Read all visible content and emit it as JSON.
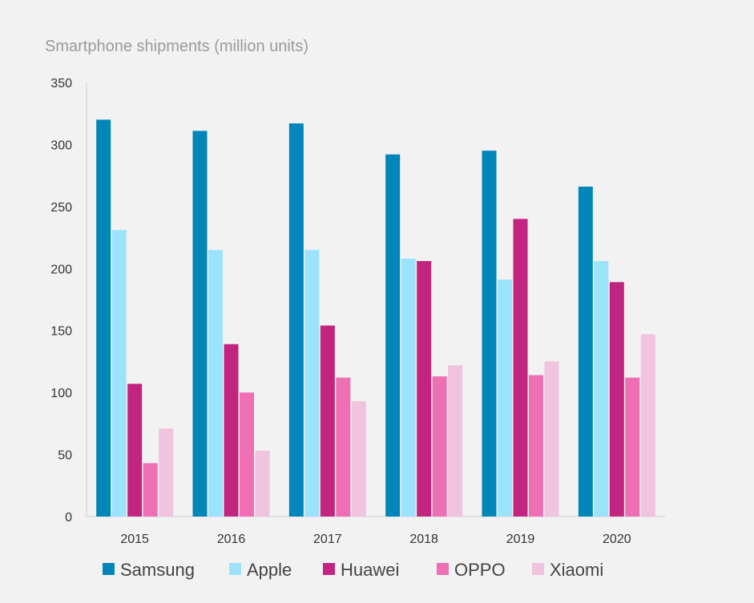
{
  "chart_data": {
    "type": "bar",
    "title": "Smartphone shipments (million units)",
    "xlabel": "",
    "ylabel": "",
    "categories": [
      "2015",
      "2016",
      "2017",
      "2018",
      "2019",
      "2020"
    ],
    "ylim": [
      0,
      350
    ],
    "yticks": [
      0,
      50,
      100,
      150,
      200,
      250,
      300,
      350
    ],
    "grid": false,
    "legend_position": "bottom",
    "series": [
      {
        "name": "Samsung",
        "color": "#0086b8",
        "values": [
          320,
          311,
          317,
          292,
          295,
          266
        ]
      },
      {
        "name": "Apple",
        "color": "#9be3fb",
        "values": [
          231,
          215,
          215,
          208,
          191,
          206
        ]
      },
      {
        "name": "Huawei",
        "color": "#c1257f",
        "values": [
          107,
          139,
          154,
          206,
          240,
          189
        ]
      },
      {
        "name": "OPPO",
        "color": "#ee6fb4",
        "values": [
          43,
          100,
          112,
          113,
          114,
          112
        ]
      },
      {
        "name": "Xiaomi",
        "color": "#f0c3de",
        "values": [
          71,
          53,
          93,
          122,
          125,
          147
        ]
      }
    ]
  }
}
